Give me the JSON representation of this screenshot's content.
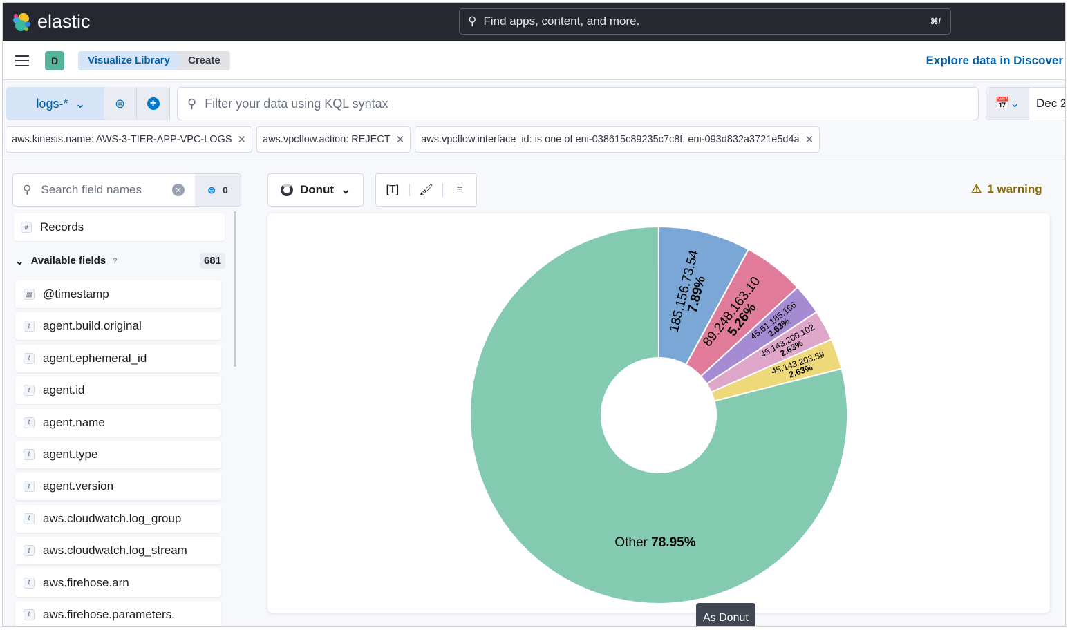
{
  "header": {
    "brand": "elastic",
    "search_placeholder": "Find apps, content, and more.",
    "shortcut": "⌘/"
  },
  "breadcrumbs": {
    "avatar": "D",
    "items": [
      "Visualize Library",
      "Create"
    ],
    "explore_link": "Explore data in Discover"
  },
  "query": {
    "data_view": "logs-*",
    "placeholder": "Filter your data using KQL syntax",
    "date": "Dec 2"
  },
  "filters": [
    "aws.kinesis.name: AWS-3-TIER-APP-VPC-LOGS",
    "aws.vpcflow.action: REJECT",
    "aws.vpcflow.interface_id: is one of eni-038615c89235c7c8f, eni-093d832a3721e5d4a"
  ],
  "sidebar": {
    "search_placeholder": "Search field names",
    "filter_count": "0",
    "records": "Records",
    "available_label": "Available fields",
    "available_count": "681",
    "fields": [
      {
        "type": "date",
        "name": "@timestamp"
      },
      {
        "type": "t",
        "name": "agent.build.original"
      },
      {
        "type": "t",
        "name": "agent.ephemeral_id"
      },
      {
        "type": "t",
        "name": "agent.id"
      },
      {
        "type": "t",
        "name": "agent.name"
      },
      {
        "type": "t",
        "name": "agent.type"
      },
      {
        "type": "t",
        "name": "agent.version"
      },
      {
        "type": "t",
        "name": "aws.cloudwatch.log_group"
      },
      {
        "type": "t",
        "name": "aws.cloudwatch.log_stream"
      },
      {
        "type": "t",
        "name": "aws.firehose.arn"
      },
      {
        "type": "t",
        "name": "aws.firehose.parameters."
      }
    ]
  },
  "toolbar": {
    "chart_type": "Donut",
    "warning": "1 warning"
  },
  "tooltip": "As Donut",
  "chart_data": {
    "type": "pie",
    "donut": true,
    "slices": [
      {
        "label": "185.156.73.54",
        "percent": 7.89,
        "color": "#7ba7d7"
      },
      {
        "label": "89.248.163.10",
        "percent": 5.26,
        "color": "#e07b9a"
      },
      {
        "label": "45.61.185.166",
        "percent": 2.63,
        "color": "#a58bd1"
      },
      {
        "label": "45.143.200.102",
        "percent": 2.63,
        "color": "#dea6c8"
      },
      {
        "label": "45.143.203.59",
        "percent": 2.63,
        "color": "#eed97a"
      },
      {
        "label": "Other",
        "percent": 78.95,
        "color": "#83cab1"
      }
    ]
  }
}
